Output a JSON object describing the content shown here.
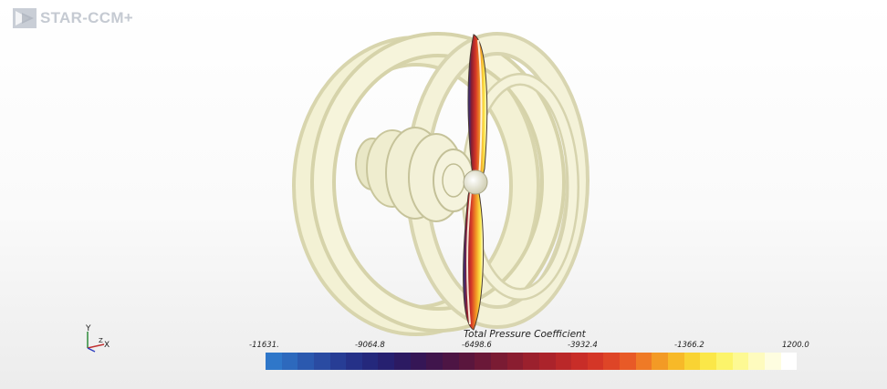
{
  "app": {
    "logo_text": "STAR-CCM+"
  },
  "axes_triad": {
    "y_label": "Y",
    "z_label": "Z",
    "x_label": "X"
  },
  "legend": {
    "title": "Total Pressure Coefficient",
    "ticks": [
      "-11631.",
      "-9064.8",
      "-6498.6",
      "-3932.4",
      "-1366.2",
      "1200.0"
    ],
    "colors": [
      "#2f77c9",
      "#2d69bd",
      "#2b59af",
      "#2a4ba2",
      "#273d95",
      "#253188",
      "#24287c",
      "#262070",
      "#2c1a62",
      "#351656",
      "#40154c",
      "#4d1544",
      "#5a163d",
      "#6a1838",
      "#7a1b33",
      "#8a1d30",
      "#9b202d",
      "#ab232b",
      "#ba2829",
      "#c82d28",
      "#d43627",
      "#de4527",
      "#e85a27",
      "#ef7a26",
      "#f39a25",
      "#f7b928",
      "#f9d333",
      "#fbe748",
      "#fcf46a",
      "#fdf993",
      "#fefbbe",
      "#fefde0",
      "#ffffff"
    ]
  },
  "scene": {
    "iso_color": "#f2f0d2",
    "iso_shade": "#d6d3aa",
    "blade_colors": [
      "#1d2f8f",
      "#b52f2a",
      "#f08a26",
      "#f7e26a",
      "#fdfce4"
    ]
  }
}
